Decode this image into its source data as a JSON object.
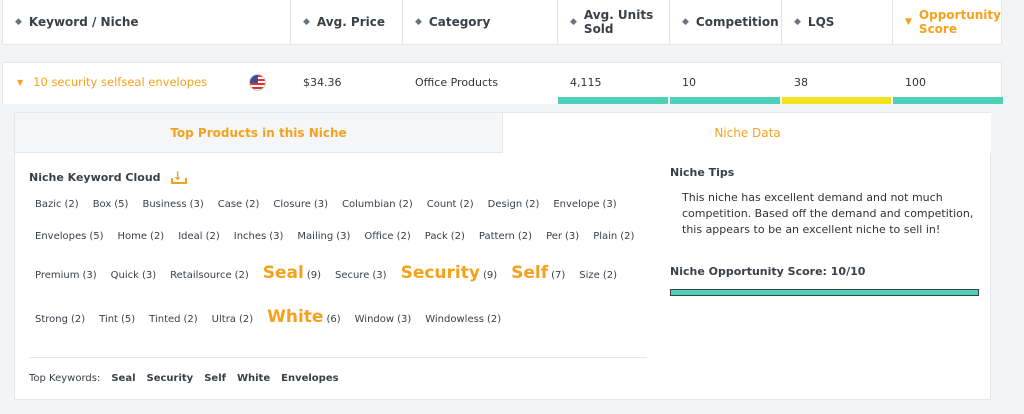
{
  "columns": [
    {
      "label": "Keyword / Niche",
      "sort_icon": "sort-icon"
    },
    {
      "label": "Avg. Price",
      "sort_icon": "sort-icon"
    },
    {
      "label": "Category",
      "sort_icon": "sort-icon"
    },
    {
      "label": "Avg. Units Sold",
      "sort_icon": "sort-icon"
    },
    {
      "label": "Competition",
      "sort_icon": "sort-icon"
    },
    {
      "label": "LQS",
      "sort_icon": "sort-icon"
    },
    {
      "label": "Opportunity Score",
      "sort_icon": "sort-desc-icon"
    }
  ],
  "row": {
    "keyword": "10 security selfseal envelopes",
    "flag_icon": "us-flag-icon",
    "avg_price": "$34.36",
    "category": "Office Products",
    "avg_units": "4,115",
    "competition": "10",
    "lqs": "38",
    "opportunity": "100"
  },
  "metric_bar_colors": {
    "avg_units": "#4fd1b8",
    "competition": "#4fd1b8",
    "lqs": "#f2e21f",
    "opportunity": "#4fd1b8"
  },
  "tabs": {
    "products": "Top Products in this Niche",
    "niche_data": "Niche Data"
  },
  "cloud": {
    "title": "Niche Keyword Cloud",
    "rows": [
      [
        {
          "word": "Bazic",
          "count": "(2)"
        },
        {
          "word": "Box",
          "count": "(5)"
        },
        {
          "word": "Business",
          "count": "(3)"
        },
        {
          "word": "Case",
          "count": "(2)"
        },
        {
          "word": "Closure",
          "count": "(3)"
        },
        {
          "word": "Columbian",
          "count": "(2)"
        },
        {
          "word": "Count",
          "count": "(2)"
        },
        {
          "word": "Design",
          "count": "(2)"
        },
        {
          "word": "Envelope",
          "count": "(3)"
        }
      ],
      [
        {
          "word": "Envelopes",
          "count": "(5)"
        },
        {
          "word": "Home",
          "count": "(2)"
        },
        {
          "word": "Ideal",
          "count": "(2)"
        },
        {
          "word": "Inches",
          "count": "(3)"
        },
        {
          "word": "Mailing",
          "count": "(3)"
        },
        {
          "word": "Office",
          "count": "(2)"
        },
        {
          "word": "Pack",
          "count": "(2)"
        },
        {
          "word": "Pattern",
          "count": "(2)"
        },
        {
          "word": "Per",
          "count": "(3)"
        },
        {
          "word": "Plain",
          "count": "(2)"
        }
      ],
      [
        {
          "word": "Premium",
          "count": "(3)"
        },
        {
          "word": "Quick",
          "count": "(3)"
        },
        {
          "word": "Retailsource",
          "count": "(2)"
        },
        {
          "word": "Seal",
          "count": "(9)",
          "big": true
        },
        {
          "word": "Secure",
          "count": "(3)"
        },
        {
          "word": "Security",
          "count": "(9)",
          "big": true
        },
        {
          "word": "Self",
          "count": "(7)",
          "big": true
        },
        {
          "word": "Size",
          "count": "(2)"
        }
      ],
      [
        {
          "word": "Strong",
          "count": "(2)"
        },
        {
          "word": "Tint",
          "count": "(5)"
        },
        {
          "word": "Tinted",
          "count": "(2)"
        },
        {
          "word": "Ultra",
          "count": "(2)"
        },
        {
          "word": "White",
          "count": "(6)",
          "big": true
        },
        {
          "word": "Window",
          "count": "(3)"
        },
        {
          "word": "Windowless",
          "count": "(2)"
        }
      ]
    ],
    "top_keywords_label": "Top Keywords:",
    "top_keywords": [
      "Seal",
      "Security",
      "Self",
      "White",
      "Envelopes"
    ]
  },
  "tips": {
    "title": "Niche Tips",
    "text": "This niche has excellent demand and not much competition. Based off the demand and competition, this appears to be an excellent niche to sell in!",
    "score_label": "Niche Opportunity Score: 10/10",
    "score_fraction": 1.0
  }
}
